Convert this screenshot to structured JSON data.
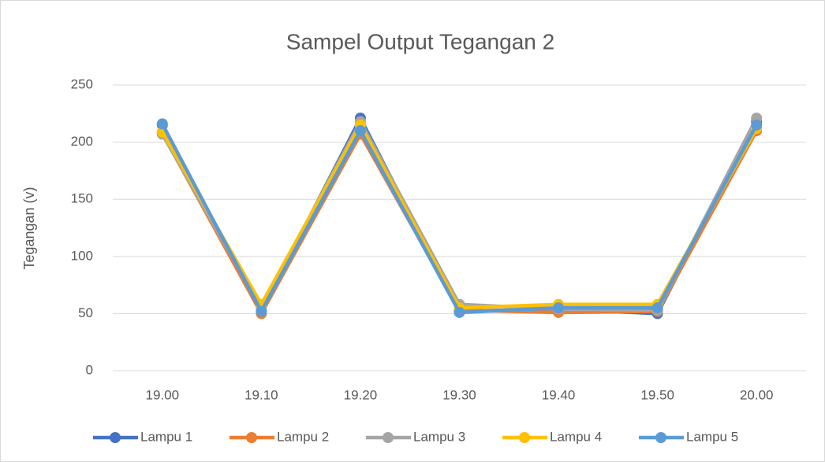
{
  "chart_data": {
    "type": "line",
    "title": "Sampel Output Tegangan 2",
    "y_label": "Tegangan (v)",
    "categories": [
      "19.00",
      "19.10",
      "19.20",
      "19.30",
      "19.40",
      "19.50",
      "20.00"
    ],
    "series": [
      {
        "name": "Lampu 1",
        "color": "#4472c4",
        "values": [
          215,
          52,
          221,
          52,
          54,
          50,
          218
        ]
      },
      {
        "name": "Lampu 2",
        "color": "#ed7d31",
        "values": [
          208,
          50,
          207,
          53,
          51,
          52,
          210
        ]
      },
      {
        "name": "Lampu 3",
        "color": "#a5a5a5",
        "values": [
          207,
          55,
          218,
          58,
          54,
          53,
          221
        ]
      },
      {
        "name": "Lampu 4",
        "color": "#ffc000",
        "values": [
          209,
          58,
          215,
          55,
          58,
          58,
          212
        ]
      },
      {
        "name": "Lampu 5",
        "color": "#5b9bd5",
        "values": [
          216,
          52,
          210,
          51,
          55,
          55,
          215
        ]
      }
    ],
    "ylim": [
      0,
      250
    ],
    "yticks": [
      0,
      50,
      100,
      150,
      200,
      250
    ],
    "grid": true,
    "legend": "bottom"
  }
}
